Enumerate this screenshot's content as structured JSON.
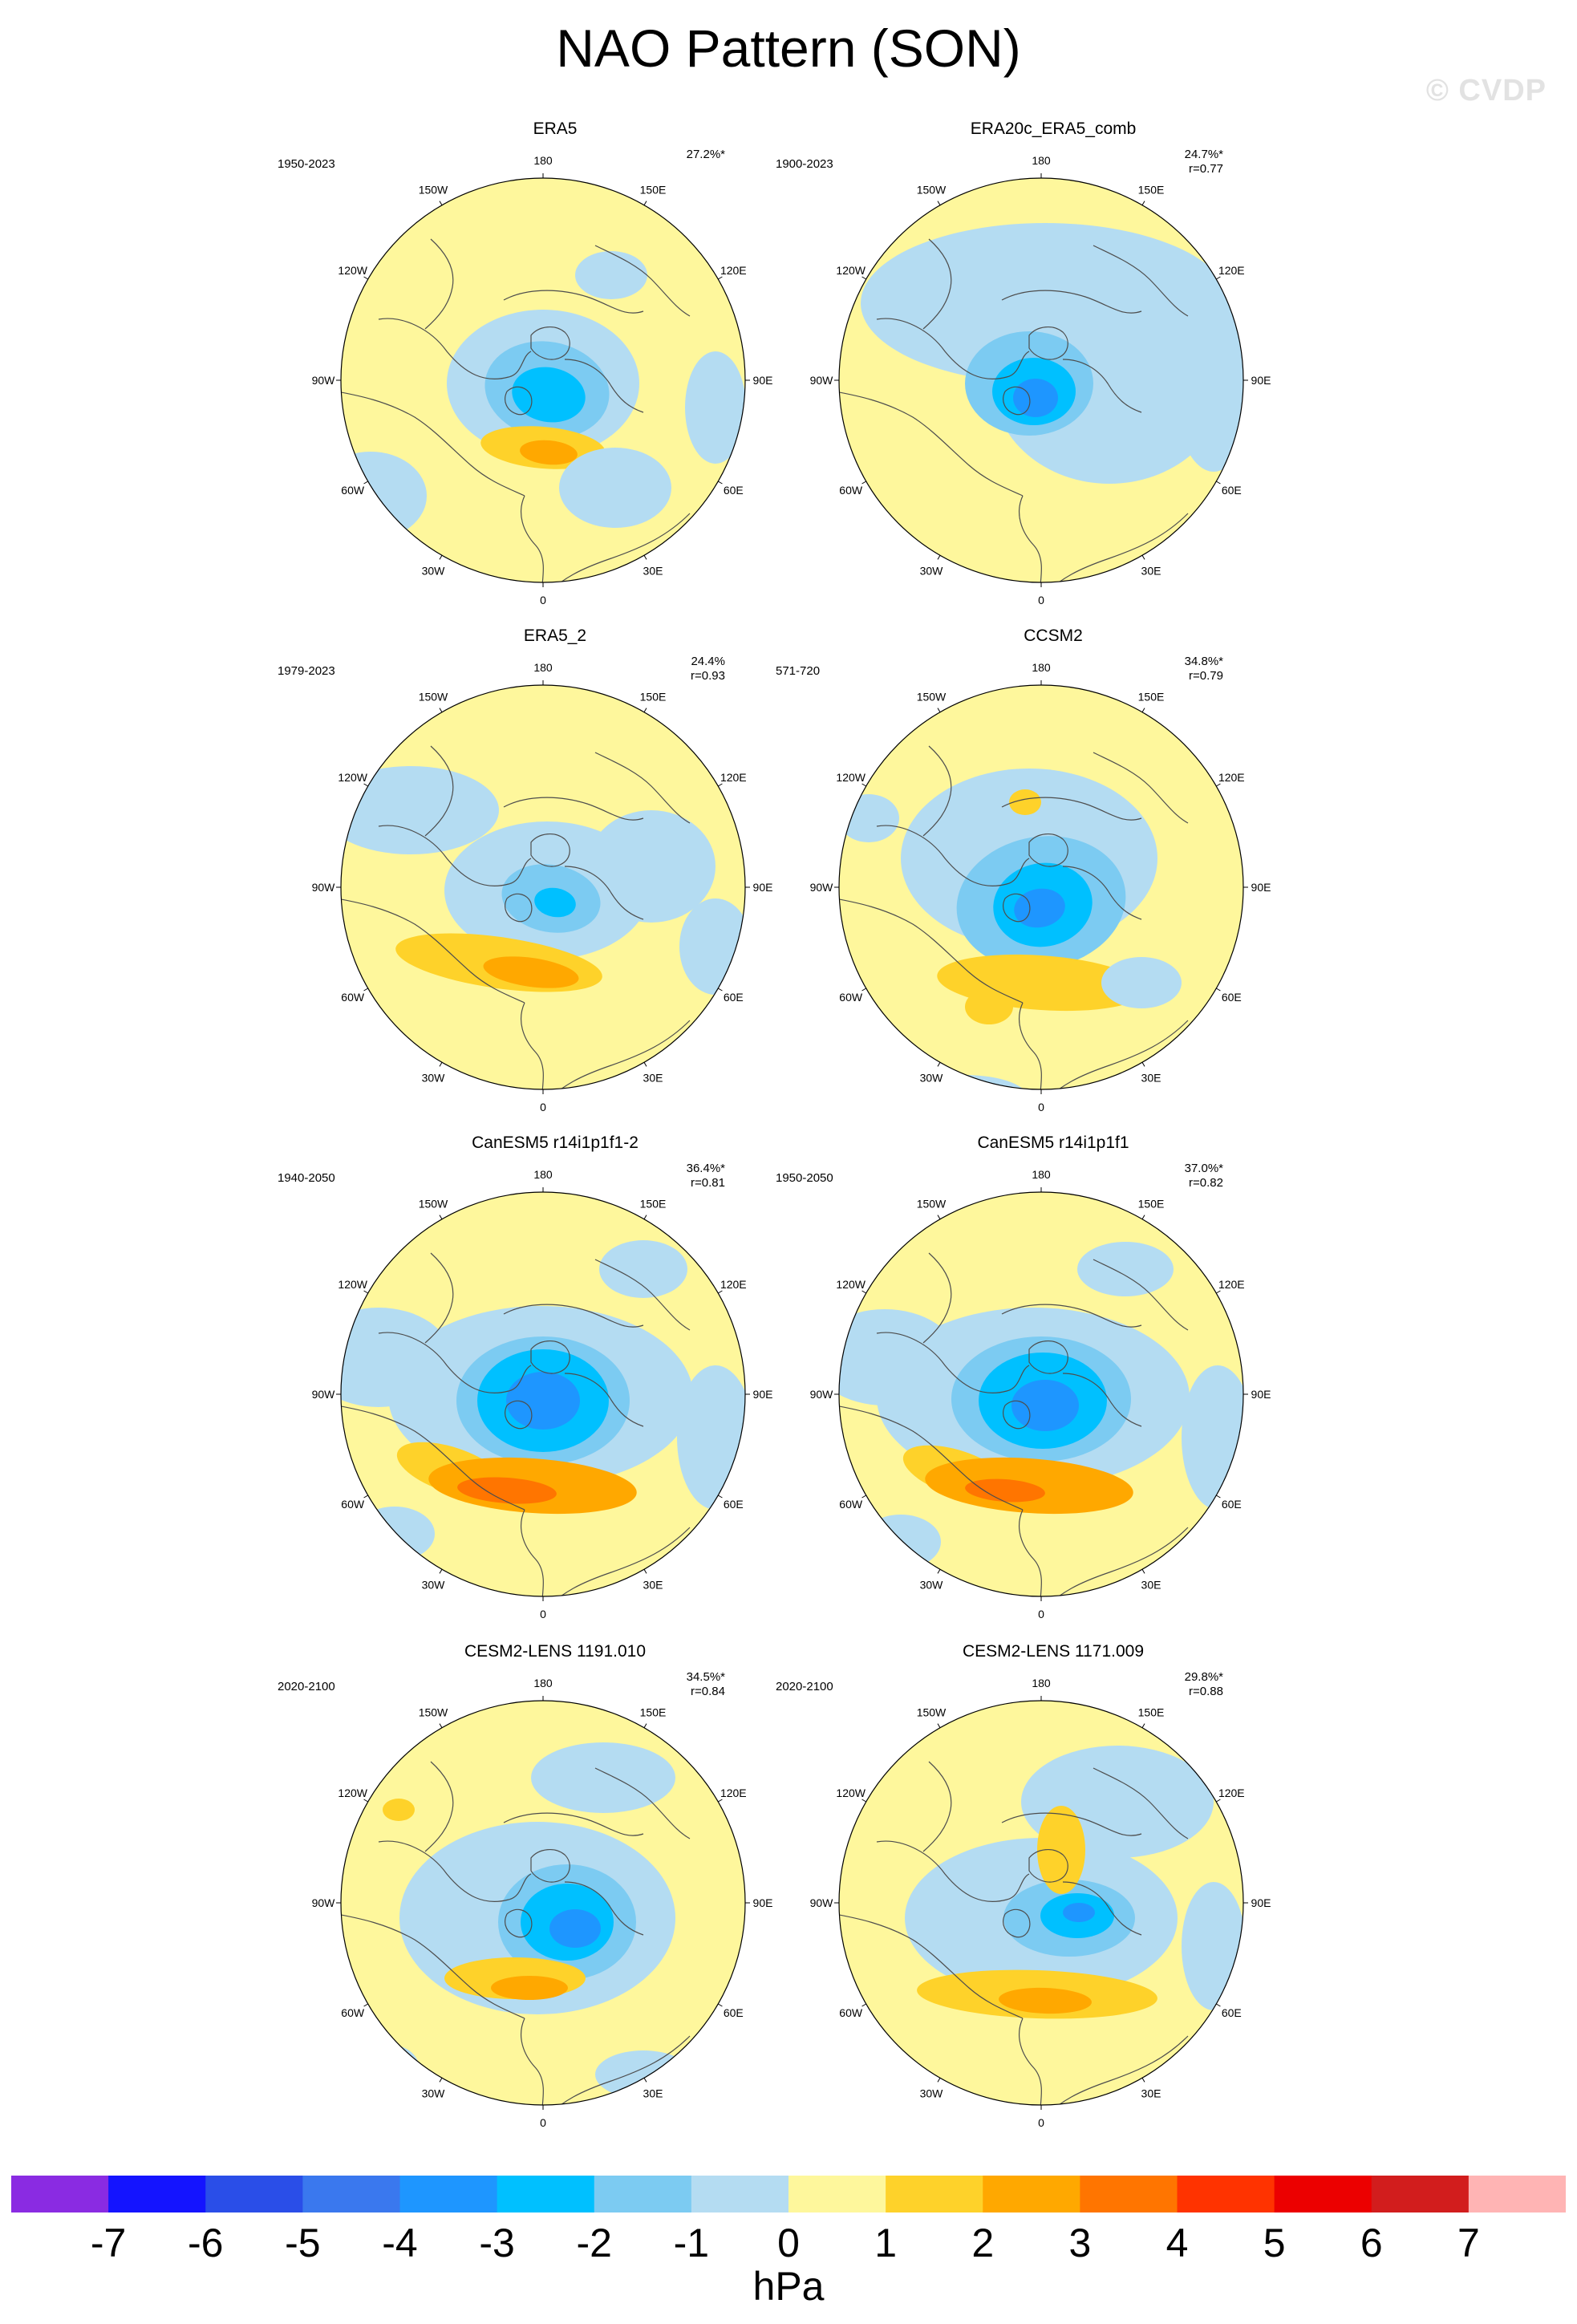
{
  "title": "NAO Pattern (SON)",
  "watermark": "© CVDP",
  "colors": {
    "land_outline": "#4d4d4d",
    "zero_band": "#fef79c"
  },
  "longitude_labels": [
    "180",
    "150E",
    "120E",
    "90E",
    "60E",
    "30E",
    "0",
    "30W",
    "60W",
    "90W",
    "120W",
    "150W"
  ],
  "panels": [
    {
      "title": "ERA5",
      "period": "1950-2023",
      "variance": "27.2%*",
      "correlation": ""
    },
    {
      "title": "ERA20c_ERA5_comb",
      "period": "1900-2023",
      "variance": "24.7%*",
      "correlation": "r=0.77"
    },
    {
      "title": "ERA5_2",
      "period": "1979-2023",
      "variance": "24.4%",
      "correlation": "r=0.93"
    },
    {
      "title": "CCSM2",
      "period": "571-720",
      "variance": "34.8%*",
      "correlation": "r=0.79"
    },
    {
      "title": "CanESM5 r14i1p1f1-2",
      "period": "1940-2050",
      "variance": "36.4%*",
      "correlation": "r=0.81"
    },
    {
      "title": "CanESM5 r14i1p1f1",
      "period": "1950-2050",
      "variance": "37.0%*",
      "correlation": "r=0.82"
    },
    {
      "title": "CESM2-LENS 1191.010",
      "period": "2020-2100",
      "variance": "34.5%*",
      "correlation": "r=0.84"
    },
    {
      "title": "CESM2-LENS 1171.009",
      "period": "2020-2100",
      "variance": "29.8%*",
      "correlation": "r=0.88"
    }
  ],
  "colorbar": {
    "units": "hPa",
    "tick_labels": [
      "-7",
      "-6",
      "-5",
      "-4",
      "-3",
      "-2",
      "-1",
      "0",
      "1",
      "2",
      "3",
      "4",
      "5",
      "6",
      "7"
    ],
    "colors": [
      "#8a2be2",
      "#1414ff",
      "#2a4ee8",
      "#3a78ee",
      "#1e96ff",
      "#00c0ff",
      "#7ccbf2",
      "#b4dcf2",
      "#fef79c",
      "#fed22a",
      "#ffa800",
      "#ff7500",
      "#ff3300",
      "#ec0000",
      "#d21d1d",
      "#ffb4b4"
    ]
  }
}
